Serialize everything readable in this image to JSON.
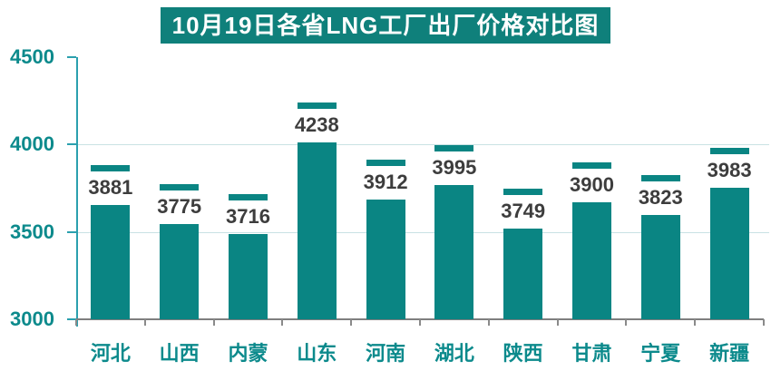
{
  "title": "10月19日各省LNG工厂出厂价格对比图",
  "chart_data": {
    "type": "bar",
    "title": "10月19日各省LNG工厂出厂价格对比图",
    "categories": [
      "河北",
      "山西",
      "内蒙",
      "山东",
      "河南",
      "湖北",
      "陕西",
      "甘肃",
      "宁夏",
      "新疆"
    ],
    "values": [
      3881,
      3775,
      3716,
      4238,
      3912,
      3995,
      3749,
      3900,
      3823,
      3983
    ],
    "xlabel": "",
    "ylabel": "",
    "ylim": [
      3000,
      4500
    ],
    "yticks": [
      3000,
      3500,
      4000,
      4500
    ],
    "gridlines_at": [
      3500,
      4000
    ],
    "legend": "none",
    "annotation_style": "each bar shows a value label and a short cap dash at the true value height above a truncated bar body"
  },
  "colors": {
    "background": "#ffffff",
    "bar": "#0a8583",
    "title_background": "#0f807b",
    "title_text": "#ffffff",
    "teal_text": "#0c8a8c",
    "value_text": "#3d3d3d",
    "axis_line": "#2ba0ae",
    "gridline": "#c9e2e4",
    "baseline": "#7f7f7f"
  }
}
